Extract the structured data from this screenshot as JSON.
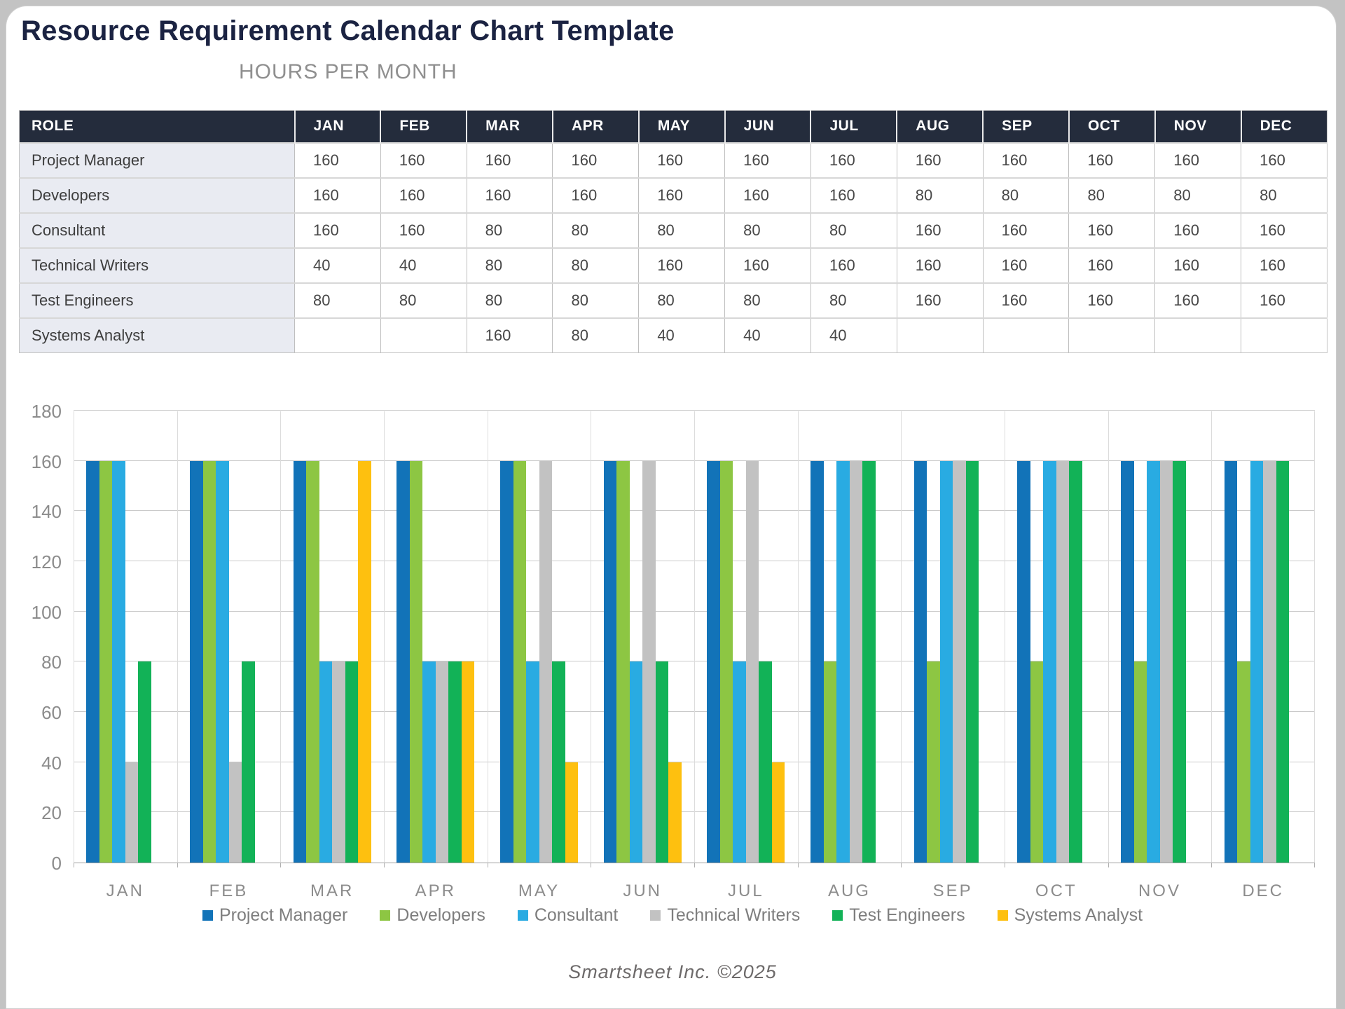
{
  "title": "Resource Requirement Calendar Chart Template",
  "footer": "Smartsheet Inc. ©2025",
  "table": {
    "title": "HOURS PER MONTH",
    "role_header": "ROLE",
    "months": [
      "JAN",
      "FEB",
      "MAR",
      "APR",
      "MAY",
      "JUN",
      "JUL",
      "AUG",
      "SEP",
      "OCT",
      "NOV",
      "DEC"
    ],
    "rows": [
      {
        "role": "Project Manager",
        "values": [
          160,
          160,
          160,
          160,
          160,
          160,
          160,
          160,
          160,
          160,
          160,
          160
        ]
      },
      {
        "role": "Developers",
        "values": [
          160,
          160,
          160,
          160,
          160,
          160,
          160,
          80,
          80,
          80,
          80,
          80
        ]
      },
      {
        "role": "Consultant",
        "values": [
          160,
          160,
          80,
          80,
          80,
          80,
          80,
          160,
          160,
          160,
          160,
          160
        ]
      },
      {
        "role": "Technical Writers",
        "values": [
          40,
          40,
          80,
          80,
          160,
          160,
          160,
          160,
          160,
          160,
          160,
          160
        ]
      },
      {
        "role": "Test Engineers",
        "values": [
          80,
          80,
          80,
          80,
          80,
          80,
          80,
          160,
          160,
          160,
          160,
          160
        ]
      },
      {
        "role": "Systems Analyst",
        "values": [
          null,
          null,
          160,
          80,
          40,
          40,
          40,
          null,
          null,
          null,
          null,
          null
        ]
      }
    ]
  },
  "chart_data": {
    "type": "bar",
    "categories": [
      "JAN",
      "FEB",
      "MAR",
      "APR",
      "MAY",
      "JUN",
      "JUL",
      "AUG",
      "SEP",
      "OCT",
      "NOV",
      "DEC"
    ],
    "series": [
      {
        "name": "Project Manager",
        "color": "#1273b8",
        "values": [
          160,
          160,
          160,
          160,
          160,
          160,
          160,
          160,
          160,
          160,
          160,
          160
        ]
      },
      {
        "name": "Developers",
        "color": "#8dc643",
        "values": [
          160,
          160,
          160,
          160,
          160,
          160,
          160,
          80,
          80,
          80,
          80,
          80
        ]
      },
      {
        "name": "Consultant",
        "color": "#29abe2",
        "values": [
          160,
          160,
          80,
          80,
          80,
          80,
          80,
          160,
          160,
          160,
          160,
          160
        ]
      },
      {
        "name": "Technical Writers",
        "color": "#c2c2c2",
        "values": [
          40,
          40,
          80,
          80,
          160,
          160,
          160,
          160,
          160,
          160,
          160,
          160
        ]
      },
      {
        "name": "Test Engineers",
        "color": "#12b257",
        "values": [
          80,
          80,
          80,
          80,
          80,
          80,
          80,
          160,
          160,
          160,
          160,
          160
        ]
      },
      {
        "name": "Systems Analyst",
        "color": "#fec00f",
        "values": [
          null,
          null,
          160,
          80,
          40,
          40,
          40,
          null,
          null,
          null,
          null,
          null
        ]
      }
    ],
    "title": "",
    "xlabel": "",
    "ylabel": "",
    "ylim": [
      0,
      180
    ],
    "ytick_step": 20,
    "grid": true,
    "legend_position": "bottom"
  }
}
